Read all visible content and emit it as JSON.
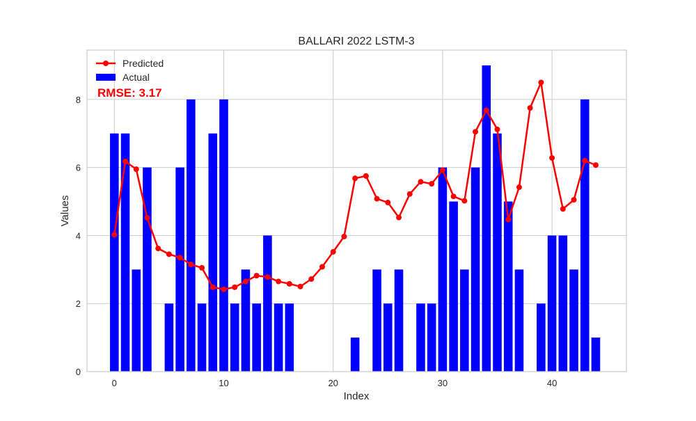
{
  "chart_data": {
    "type": "bar",
    "title": "BALLARI 2022 LSTM-3",
    "xlabel": "Index",
    "ylabel": "Values",
    "xlim": [
      -2.5,
      46.8
    ],
    "ylim": [
      0,
      9.45
    ],
    "xticks": [
      0,
      10,
      20,
      30,
      40
    ],
    "yticks": [
      0,
      2,
      4,
      6,
      8
    ],
    "grid": true,
    "legend_position": "top-left",
    "annotation": "RMSE: 3.17",
    "colors": {
      "actual": "#0000ff",
      "predicted": "#ff0000",
      "annotation": "#ff0000"
    },
    "series": [
      {
        "name": "Predicted",
        "type": "line",
        "marker": "circle",
        "x": [
          0,
          1,
          2,
          3,
          4,
          5,
          6,
          7,
          8,
          9,
          10,
          11,
          12,
          13,
          14,
          15,
          16,
          17,
          18,
          19,
          20,
          21,
          22,
          23,
          24,
          25,
          26,
          27,
          28,
          29,
          30,
          31,
          32,
          33,
          34,
          35,
          36,
          37,
          38,
          39,
          40,
          41,
          42,
          43,
          44
        ],
        "values": [
          4.02,
          6.18,
          5.95,
          4.52,
          3.62,
          3.45,
          3.35,
          3.15,
          3.05,
          2.48,
          2.42,
          2.48,
          2.65,
          2.82,
          2.78,
          2.65,
          2.58,
          2.5,
          2.72,
          3.08,
          3.52,
          3.97,
          5.68,
          5.75,
          5.08,
          4.97,
          4.53,
          5.22,
          5.58,
          5.52,
          5.92,
          5.15,
          5.02,
          7.05,
          7.68,
          7.12,
          4.47,
          5.42,
          7.75,
          8.5,
          6.28,
          4.78,
          5.05,
          6.2,
          6.07
        ]
      },
      {
        "name": "Actual",
        "type": "bar",
        "x": [
          0,
          1,
          2,
          3,
          4,
          5,
          6,
          7,
          8,
          9,
          10,
          11,
          12,
          13,
          14,
          15,
          16,
          17,
          18,
          19,
          20,
          21,
          22,
          23,
          24,
          25,
          26,
          27,
          28,
          29,
          30,
          31,
          32,
          33,
          34,
          35,
          36,
          37,
          38,
          39,
          40,
          41,
          42,
          43,
          44
        ],
        "values": [
          7,
          7,
          3,
          6,
          0,
          2,
          6,
          8,
          2,
          7,
          8,
          2,
          3,
          2,
          4,
          2,
          2,
          0,
          0,
          0,
          0,
          0,
          1,
          0,
          3,
          2,
          3,
          0,
          2,
          2,
          6,
          5,
          3,
          6,
          9,
          7,
          5,
          3,
          0,
          2,
          4,
          4,
          3,
          8,
          1
        ]
      }
    ]
  }
}
